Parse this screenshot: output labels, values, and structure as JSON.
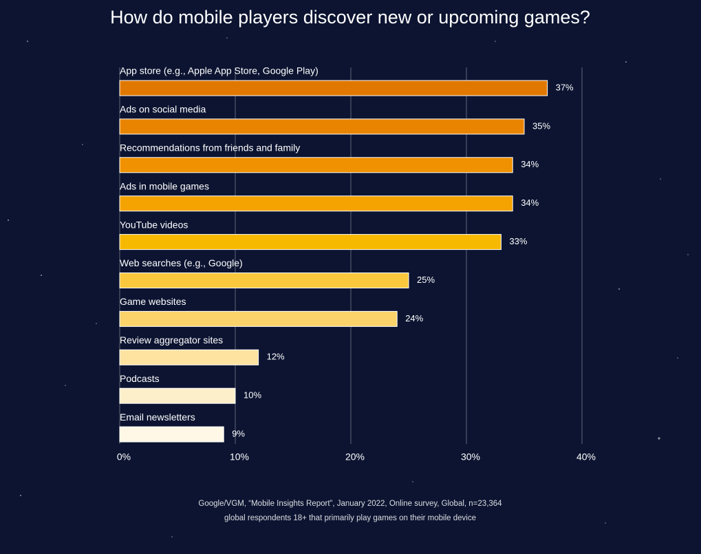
{
  "chart_data": {
    "type": "bar",
    "orientation": "horizontal",
    "title": "How do mobile players discover new or upcoming games?",
    "categories": [
      "App store (e.g., Apple App Store, Google Play)",
      "Ads on social media",
      "Recommendations from friends and family",
      "Ads in mobile games",
      "YouTube videos",
      "Web searches (e.g., Google)",
      "Game websites",
      "Review aggregator sites",
      "Podcasts",
      "Email newsletters"
    ],
    "values": [
      37,
      35,
      34,
      34,
      33,
      25,
      24,
      12,
      10,
      9
    ],
    "value_labels": [
      "37%",
      "35%",
      "34%",
      "34%",
      "33%",
      "25%",
      "24%",
      "12%",
      "10%",
      "9%"
    ],
    "colors": [
      "#e07800",
      "#e98400",
      "#ef9100",
      "#f4a300",
      "#f7b800",
      "#fac83c",
      "#fbd36a",
      "#fde2a0",
      "#feefcb",
      "#fff8e6"
    ],
    "xlim": [
      0,
      40
    ],
    "xticks": [
      {
        "value": 0,
        "label": "0%"
      },
      {
        "value": 10,
        "label": "10%"
      },
      {
        "value": 20,
        "label": "20%"
      },
      {
        "value": 30,
        "label": "30%"
      },
      {
        "value": 40,
        "label": "40%"
      }
    ],
    "grid": true,
    "source": [
      "Google/VGM, “Mobile Insights Report”, January 2022, Online survey, Global, n=23,364",
      "global respondents 18+ that primarily play games on their mobile device"
    ]
  }
}
